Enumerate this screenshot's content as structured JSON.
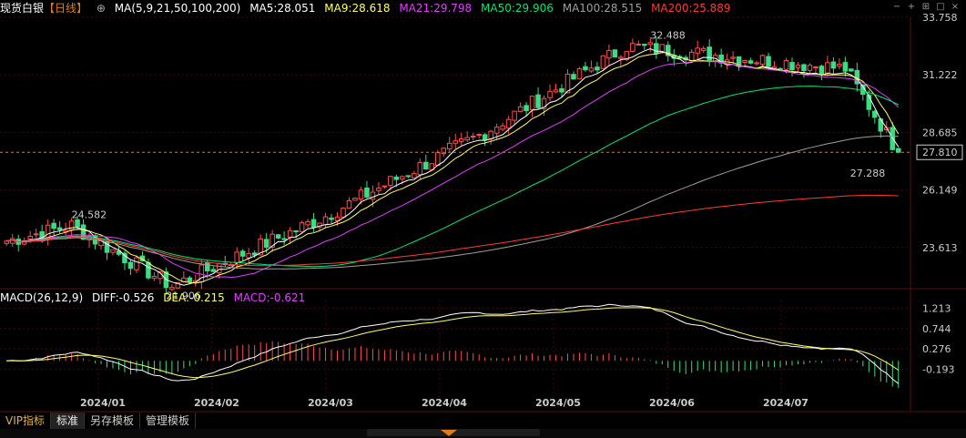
{
  "header": {
    "instrument": "现货白银",
    "period": "【日线】",
    "lock_icon": "lock-icon",
    "ma_params": "MA(5,9,21,50,100,200)",
    "ma5": "MA5:28.051",
    "ma9": "MA9:28.618",
    "ma21": "MA21:29.798",
    "ma50": "MA50:29.906",
    "ma100": "MA100:28.515",
    "ma200": "MA200:25.889"
  },
  "macd_header": {
    "params": "MACD(26,12,9)",
    "diff": "DIFF:-0.526",
    "dea": "DEA:-0.215",
    "macd": "MACD:-0.621"
  },
  "colors": {
    "up": "#ff4d4d",
    "down": "#3ddc84",
    "ma5": "#ffffff",
    "ma9": "#ffff66",
    "ma21": "#e040fb",
    "ma50": "#00e676",
    "ma100": "#9e9e9e",
    "ma200": "#ff3b30",
    "grid": "#3a0a0a",
    "last_price_line": "#e07b20",
    "diff_line": "#ffffff",
    "dea_line": "#ffff66"
  },
  "toolbar": {
    "vip": "VIP指标",
    "standard": "标准",
    "save_template": "另存模板",
    "manage_template": "管理模板"
  },
  "chart_data": [
    {
      "type": "candlestick",
      "title": "现货白银【日线】",
      "yaxis_ticks": [
        33.758,
        31.222,
        28.685,
        26.149,
        23.613
      ],
      "ylim": [
        22.0,
        33.8
      ],
      "last_price": 27.81,
      "annotations": [
        {
          "text": "32.488",
          "kind": "high"
        },
        {
          "text": "24.582",
          "kind": "high"
        },
        {
          "text": "21.906",
          "kind": "low"
        },
        {
          "text": "27.288",
          "kind": "low"
        }
      ],
      "xaxis_labels": [
        "2024/01",
        "2024/02",
        "2024/03",
        "2024/04",
        "2024/05",
        "2024/06",
        "2024/07"
      ],
      "key_points": [
        {
          "label": "start",
          "close": 23.9
        },
        {
          "label": "high_dec",
          "close": 24.58
        },
        {
          "label": "low_feb",
          "close": 21.91
        },
        {
          "label": "mar_end",
          "close": 25.0
        },
        {
          "label": "apr_peak",
          "close": 28.7
        },
        {
          "label": "may_peak",
          "close": 32.49
        },
        {
          "label": "jul_peak",
          "close": 31.5
        },
        {
          "label": "end",
          "close": 27.81
        }
      ],
      "series": [
        {
          "name": "MA5",
          "last": 28.051
        },
        {
          "name": "MA9",
          "last": 28.618
        },
        {
          "name": "MA21",
          "last": 29.798
        },
        {
          "name": "MA50",
          "last": 29.906
        },
        {
          "name": "MA100",
          "last": 28.515
        },
        {
          "name": "MA200",
          "last": 25.889
        }
      ]
    },
    {
      "type": "bar",
      "title": "MACD(26,12,9)",
      "yaxis_ticks": [
        1.213,
        0.744,
        0.276,
        -0.193
      ],
      "ylim": [
        -0.75,
        1.35
      ],
      "series": [
        {
          "name": "DIFF",
          "last": -0.526
        },
        {
          "name": "DEA",
          "last": -0.215
        },
        {
          "name": "MACD",
          "last": -0.621
        }
      ]
    }
  ]
}
